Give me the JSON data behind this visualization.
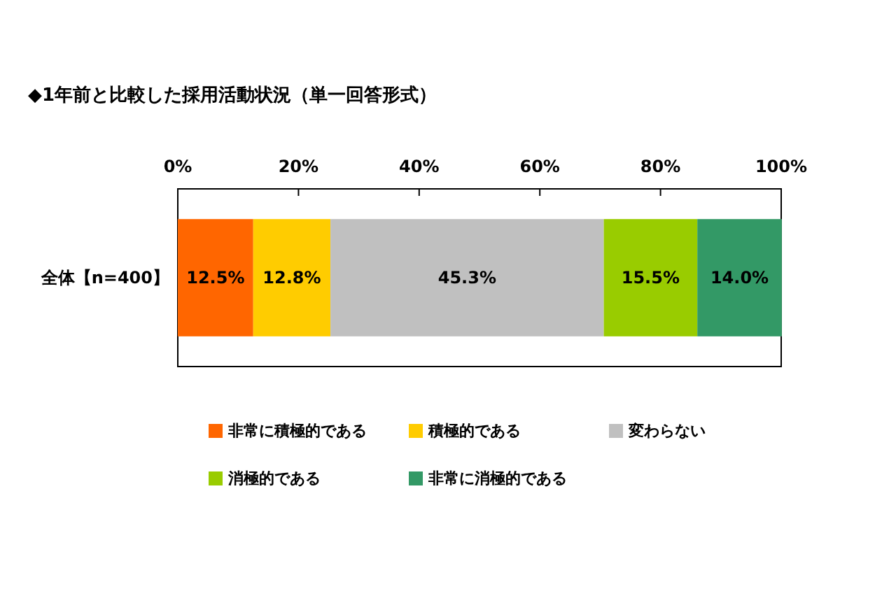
{
  "chart_data": {
    "type": "bar",
    "orientation": "horizontal",
    "stacked": true,
    "title": "◆1年前と比較した採用活動状況（単一回答形式）",
    "categories": [
      "全体【n=400】"
    ],
    "series": [
      {
        "name": "非常に積極的である",
        "color": "#ff6600",
        "values": [
          12.5
        ],
        "value_labels": [
          "12.5%"
        ]
      },
      {
        "name": "積極的である",
        "color": "#ffcc00",
        "values": [
          12.8
        ],
        "value_labels": [
          "12.8%"
        ]
      },
      {
        "name": "変わらない",
        "color": "#c0c0c0",
        "values": [
          45.3
        ],
        "value_labels": [
          "45.3%"
        ]
      },
      {
        "name": "消極的である",
        "color": "#99cc00",
        "values": [
          15.5
        ],
        "value_labels": [
          "15.5%"
        ]
      },
      {
        "name": "非常に消極的である",
        "color": "#339966",
        "values": [
          14.0
        ],
        "value_labels": [
          "14.0%"
        ]
      }
    ],
    "xlim": [
      0,
      100
    ],
    "xticks": [
      {
        "value": 0,
        "label": "0%"
      },
      {
        "value": 20,
        "label": "20%"
      },
      {
        "value": 40,
        "label": "40%"
      },
      {
        "value": 60,
        "label": "60%"
      },
      {
        "value": 80,
        "label": "80%"
      },
      {
        "value": 100,
        "label": "100%"
      }
    ],
    "legend": "bottom"
  }
}
